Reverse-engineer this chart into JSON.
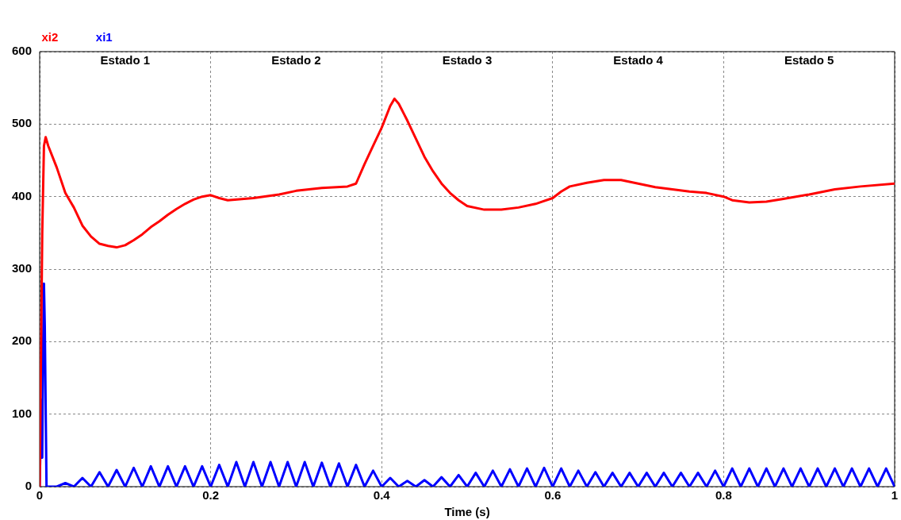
{
  "chart_data": {
    "type": "line",
    "xlabel": "Time (s)",
    "xlim": [
      0,
      1
    ],
    "xticks": [
      0,
      {
        "value": 0.2,
        "label": "0.2"
      },
      {
        "value": 0.4,
        "label": "0.4"
      },
      {
        "value": 0.6,
        "label": "0.6"
      },
      {
        "value": 0.8,
        "label": "0.8"
      },
      1
    ],
    "ylim": [
      0,
      600
    ],
    "yticks": [
      0,
      100,
      200,
      300,
      400,
      500,
      600
    ],
    "grid": true,
    "legend": "top left",
    "line_style": "solid",
    "marker": "none",
    "annotations": [
      "Estado 1",
      "Estado 2",
      "Estado 3",
      "Estado 4",
      "Estado 5"
    ],
    "series": [
      {
        "name": "xi2",
        "color": "#ff0000",
        "x": [
          0,
          0.003,
          0.005,
          0.007,
          0.01,
          0.02,
          0.03,
          0.04,
          0.05,
          0.06,
          0.07,
          0.08,
          0.09,
          0.1,
          0.11,
          0.12,
          0.13,
          0.14,
          0.15,
          0.16,
          0.17,
          0.18,
          0.19,
          0.2,
          0.21,
          0.22,
          0.25,
          0.28,
          0.3,
          0.33,
          0.36,
          0.37,
          0.38,
          0.39,
          0.4,
          0.41,
          0.415,
          0.42,
          0.43,
          0.44,
          0.45,
          0.46,
          0.47,
          0.48,
          0.49,
          0.5,
          0.52,
          0.54,
          0.56,
          0.58,
          0.6,
          0.61,
          0.62,
          0.64,
          0.66,
          0.68,
          0.7,
          0.72,
          0.74,
          0.76,
          0.78,
          0.8,
          0.81,
          0.83,
          0.85,
          0.87,
          0.9,
          0.93,
          0.96,
          1
        ],
        "values": [
          0,
          350,
          470,
          482,
          470,
          440,
          405,
          385,
          360,
          345,
          335,
          332,
          330,
          333,
          340,
          348,
          358,
          366,
          375,
          383,
          390,
          396,
          400,
          402,
          398,
          395,
          398,
          403,
          408,
          412,
          414,
          418,
          445,
          470,
          495,
          525,
          535,
          528,
          505,
          480,
          455,
          435,
          418,
          405,
          395,
          387,
          382,
          382,
          385,
          390,
          398,
          407,
          414,
          419,
          423,
          423,
          418,
          413,
          410,
          407,
          405,
          400,
          395,
          392,
          393,
          397,
          403,
          410,
          414,
          418
        ]
      },
      {
        "name": "xi1",
        "color": "#0000ff",
        "x": [
          0,
          0.002,
          0.003,
          0.004,
          0.005,
          0.006,
          0.007,
          0.008,
          0.02,
          0.03,
          0.04,
          0.05,
          0.06,
          0.07,
          0.08,
          0.09,
          0.1,
          0.11,
          0.12,
          0.13,
          0.14,
          0.15,
          0.16,
          0.17,
          0.18,
          0.19,
          0.2,
          0.21,
          0.22,
          0.23,
          0.24,
          0.25,
          0.26,
          0.27,
          0.28,
          0.29,
          0.3,
          0.31,
          0.32,
          0.33,
          0.34,
          0.35,
          0.36,
          0.37,
          0.38,
          0.39,
          0.4,
          0.41,
          0.42,
          0.43,
          0.44,
          0.45,
          0.46,
          0.47,
          0.48,
          0.49,
          0.5,
          0.51,
          0.52,
          0.53,
          0.54,
          0.55,
          0.56,
          0.57,
          0.58,
          0.59,
          0.6,
          0.61,
          0.62,
          0.63,
          0.64,
          0.65,
          0.66,
          0.67,
          0.68,
          0.69,
          0.7,
          0.71,
          0.72,
          0.73,
          0.74,
          0.75,
          0.76,
          0.77,
          0.78,
          0.79,
          0.8,
          0.81,
          0.82,
          0.83,
          0.84,
          0.85,
          0.86,
          0.87,
          0.88,
          0.89,
          0.9,
          0.91,
          0.92,
          0.93,
          0.94,
          0.95,
          0.96,
          0.97,
          0.98,
          0.99,
          1
        ],
        "values": [
          0,
          120,
          40,
          190,
          280,
          220,
          110,
          0,
          0,
          5,
          0,
          12,
          0,
          20,
          0,
          23,
          0,
          26,
          0,
          28,
          0,
          28,
          0,
          28,
          0,
          28,
          0,
          30,
          0,
          34,
          0,
          34,
          0,
          34,
          0,
          34,
          0,
          34,
          0,
          33,
          0,
          32,
          0,
          30,
          0,
          22,
          0,
          12,
          0,
          8,
          0,
          9,
          0,
          13,
          0,
          16,
          0,
          19,
          0,
          22,
          0,
          24,
          0,
          25,
          0,
          26,
          0,
          25,
          0,
          22,
          0,
          20,
          0,
          19,
          0,
          19,
          0,
          19,
          0,
          19,
          0,
          19,
          0,
          19,
          0,
          22,
          0,
          25,
          0,
          25,
          0,
          25,
          0,
          25,
          0,
          25,
          0,
          25,
          0,
          25,
          0,
          25,
          0,
          25,
          0,
          25,
          0
        ]
      }
    ]
  }
}
